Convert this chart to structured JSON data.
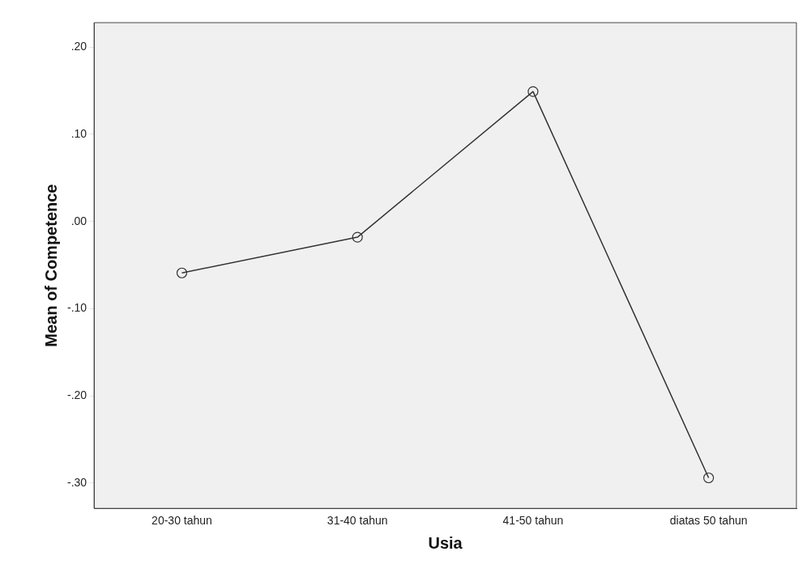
{
  "chart_data": {
    "type": "line",
    "xlabel": "Usia",
    "ylabel": "Mean of Competence",
    "categories": [
      "20-30 tahun",
      "31-40 tahun",
      "41-50 tahun",
      "diatas 50 tahun"
    ],
    "series": [
      {
        "color": "#333333",
        "values": [
          -0.059,
          -0.018,
          0.149,
          -0.294
        ]
      }
    ],
    "ylim": [
      -0.329,
      0.228
    ],
    "yticks": [
      {
        "value": -0.3,
        "label": "-.30"
      },
      {
        "value": -0.2,
        "label": "-.20"
      },
      {
        "value": -0.1,
        "label": "-.10"
      },
      {
        "value": 0,
        "label": ".00"
      },
      {
        "value": 0.1,
        "label": ".10"
      },
      {
        "value": 0.2,
        "label": ".20"
      }
    ],
    "grid": false,
    "legend": false,
    "marker": "circle",
    "line_style": "solid"
  }
}
